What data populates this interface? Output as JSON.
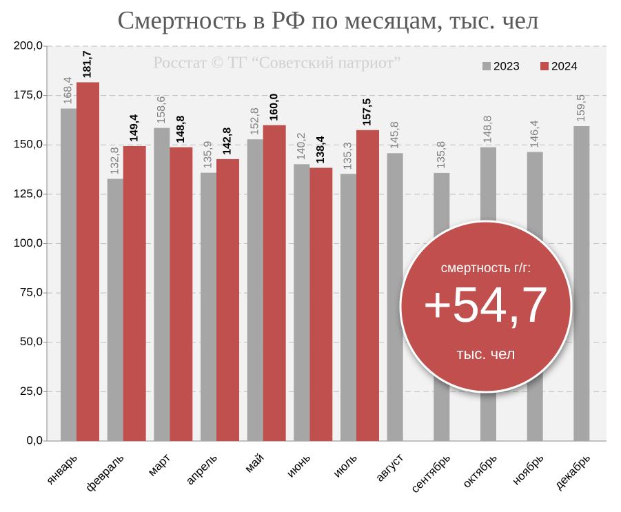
{
  "chart_data": {
    "type": "bar",
    "title": "Смертность в РФ по месяцам, тыс. чел",
    "annotations": [
      "Росстат © ТГ “Советский патриот”",
      "смертность г/г:",
      "+54,7",
      "тыс. чел"
    ],
    "categories": [
      "январь",
      "февраль",
      "март",
      "апрель",
      "май",
      "июнь",
      "июль",
      "август",
      "сентябрь",
      "октябрь",
      "ноябрь",
      "декабрь"
    ],
    "series": [
      {
        "name": "2023",
        "color": "#a6a6a6",
        "values": [
          168.4,
          132.8,
          158.6,
          135.9,
          152.8,
          140.2,
          135.3,
          145.8,
          135.8,
          148.8,
          146.4,
          159.5
        ],
        "value_labels": [
          "168,4",
          "132,8",
          "158,6",
          "135,9",
          "152,8",
          "140,2",
          "135,3",
          "145,8",
          "135,8",
          "148,8",
          "146,4",
          "159,5"
        ]
      },
      {
        "name": "2024",
        "color": "#c0504d",
        "values": [
          181.7,
          149.4,
          148.8,
          142.8,
          160.0,
          138.4,
          157.5,
          null,
          null,
          null,
          null,
          null
        ],
        "value_labels": [
          "181,7",
          "149,4",
          "148,8",
          "142,8",
          "160,0",
          "138,4",
          "157,5",
          null,
          null,
          null,
          null,
          null
        ]
      }
    ],
    "ylim": [
      0,
      200
    ],
    "yticks": [
      {
        "value": 0,
        "label": "0,0"
      },
      {
        "value": 25,
        "label": "25,0"
      },
      {
        "value": 50,
        "label": "50,0"
      },
      {
        "value": 75,
        "label": "75,0"
      },
      {
        "value": 100,
        "label": "100,0"
      },
      {
        "value": 125,
        "label": "125,0"
      },
      {
        "value": 150,
        "label": "150,0"
      },
      {
        "value": 175,
        "label": "175,0"
      },
      {
        "value": 200,
        "label": "200,0"
      }
    ],
    "grid": true,
    "legend": "upper right"
  }
}
